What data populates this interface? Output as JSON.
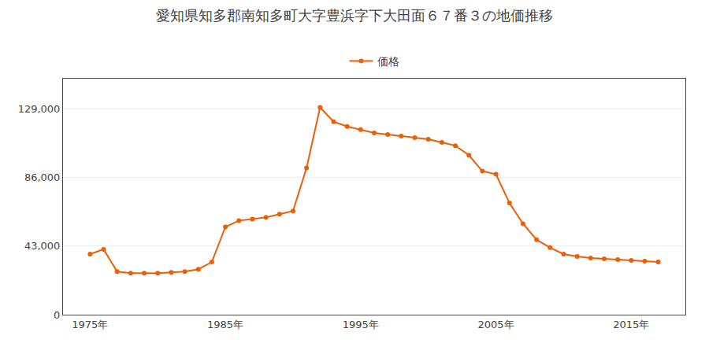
{
  "chart_data": {
    "type": "line",
    "title": "愛知県知多郡南知多町大字豊浜字下大田面６７番３の地価推移",
    "x": [
      1975,
      1976,
      1977,
      1978,
      1979,
      1980,
      1981,
      1982,
      1983,
      1984,
      1985,
      1986,
      1987,
      1988,
      1989,
      1990,
      1991,
      1992,
      1993,
      1994,
      1995,
      1996,
      1997,
      1998,
      1999,
      2000,
      2001,
      2002,
      2003,
      2004,
      2005,
      2006,
      2007,
      2008,
      2009,
      2010,
      2011,
      2012,
      2013,
      2014,
      2015,
      2016,
      2017
    ],
    "series": [
      {
        "name": "価格",
        "color": "#e8600a",
        "marker": "circle",
        "values": [
          38000,
          41000,
          27000,
          26000,
          26000,
          26000,
          26500,
          27000,
          28500,
          33000,
          55000,
          59000,
          60000,
          61000,
          63000,
          65000,
          92000,
          130000,
          121000,
          118000,
          116000,
          114000,
          113000,
          112000,
          111000,
          110000,
          108000,
          106000,
          100000,
          90000,
          88000,
          70000,
          57000,
          47000,
          42000,
          38000,
          36500,
          35500,
          35000,
          34500,
          34000,
          33500,
          33000
        ]
      }
    ],
    "xlim": [
      1973,
      2019
    ],
    "xticks": [
      {
        "value": 1975,
        "label": "1975年"
      },
      {
        "value": 1985,
        "label": "1985年"
      },
      {
        "value": 1995,
        "label": "1995年"
      },
      {
        "value": 2005,
        "label": "2005年"
      },
      {
        "value": 2015,
        "label": "2015年"
      }
    ],
    "ylim": [
      0,
      148000
    ],
    "yticks": [
      0,
      {
        "value": 43000,
        "label": "43,000"
      },
      {
        "value": 86000,
        "label": "86,000"
      },
      {
        "value": 129000,
        "label": "129,000"
      }
    ],
    "grid": true,
    "legend": "top"
  }
}
